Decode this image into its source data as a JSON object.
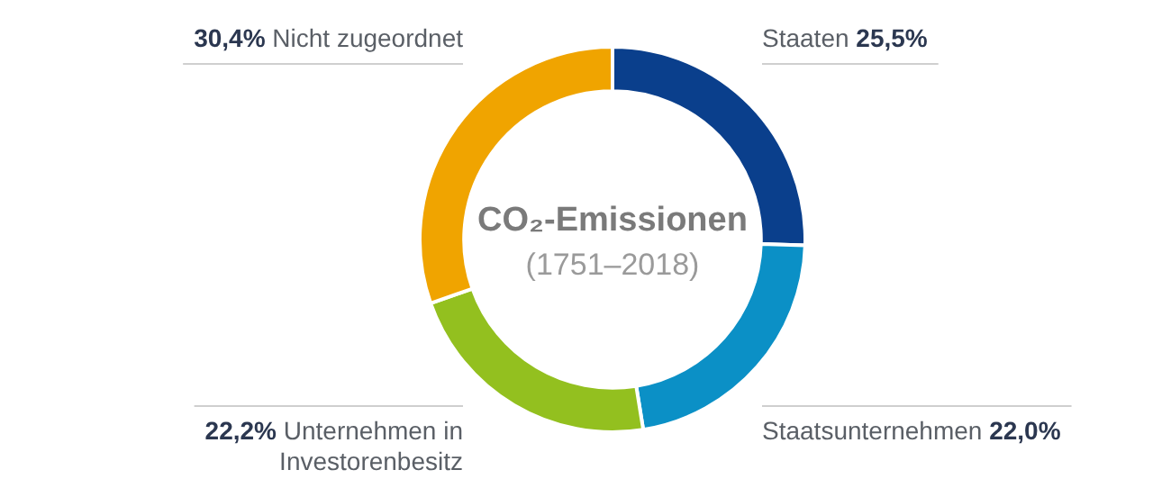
{
  "chart_data": {
    "type": "donut",
    "title": "CO₂-Emissionen",
    "subtitle": "(1751–2018)",
    "categories": [
      "Staaten",
      "Staatsunternehmen",
      "Unternehmen in Investorenbesitz",
      "Nicht zugeordnet"
    ],
    "values": [
      25.5,
      22.0,
      22.2,
      30.4
    ],
    "colors": [
      "#0a3f8c",
      "#0b90c6",
      "#93c01f",
      "#f0a400"
    ],
    "value_labels": [
      "25,5%",
      "22,0%",
      "22,2%",
      "30,4%"
    ]
  }
}
